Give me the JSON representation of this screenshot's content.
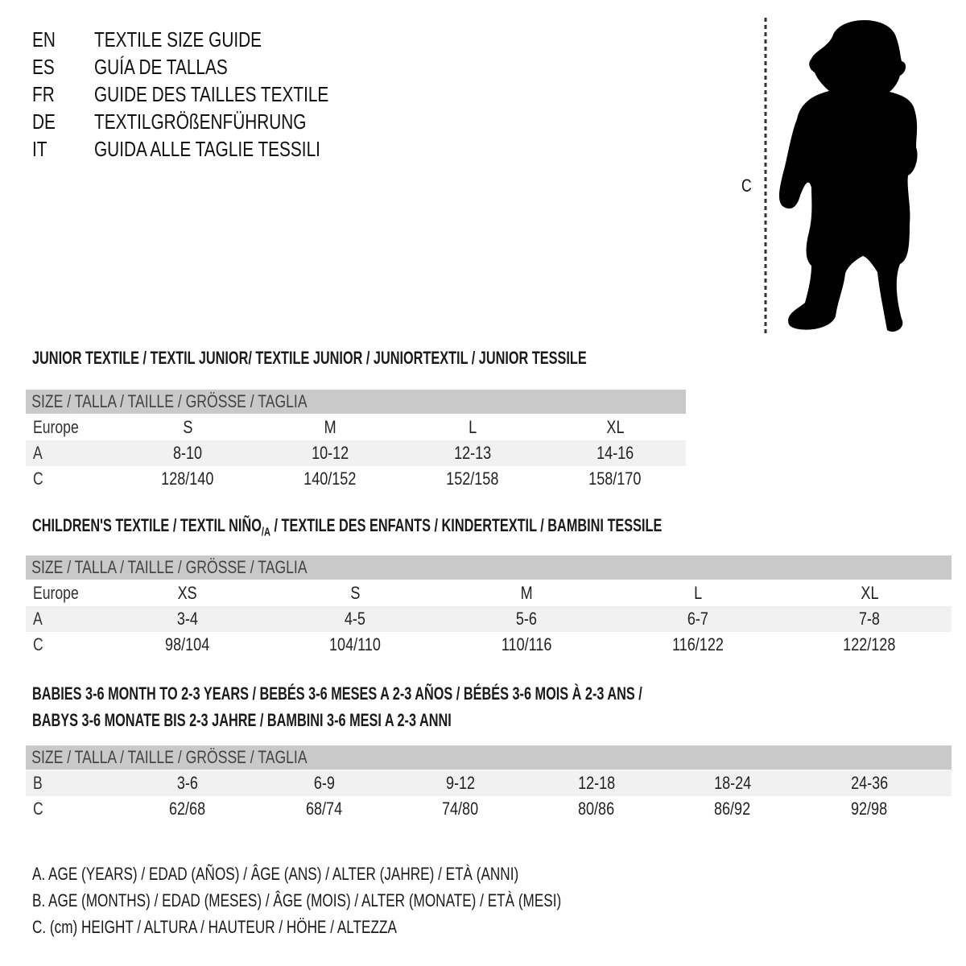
{
  "languages": [
    {
      "code": "EN",
      "title": "TEXTILE SIZE GUIDE"
    },
    {
      "code": "ES",
      "title": "GUÍA DE TALLAS"
    },
    {
      "code": "FR",
      "title": "GUIDE DES TAILLES TEXTILE"
    },
    {
      "code": "DE",
      "title": "TEXTILGRÖßENFÜHRUNG"
    },
    {
      "code": "IT",
      "title": "GUIDA ALLE TAGLIE TESSILI"
    }
  ],
  "figure": {
    "measure_label": "C",
    "icon": "child-silhouette-icon"
  },
  "size_header": "SIZE / TALLA / TAILLE / GRÖSSE / TAGLIA",
  "junior": {
    "title": "JUNIOR TEXTILE / TEXTIL JUNIOR/ TEXTILE JUNIOR / JUNIORTEXTIL / JUNIOR TESSILE",
    "rows": [
      {
        "label": "Europe",
        "values": [
          "S",
          "M",
          "L",
          "XL"
        ]
      },
      {
        "label": "A",
        "values": [
          "8-10",
          "10-12",
          "12-13",
          "14-16"
        ]
      },
      {
        "label": "C",
        "values": [
          "128/140",
          "140/152",
          "152/158",
          "158/170"
        ]
      }
    ]
  },
  "children": {
    "title_a": "CHILDREN'S TEXTILE / TEXTIL NIÑO",
    "title_sub": "/A",
    "title_b": " / TEXTILE DES ENFANTS / KINDERTEXTIL / BAMBINI TESSILE",
    "rows": [
      {
        "label": "Europe",
        "values": [
          "XS",
          "S",
          "M",
          "L",
          "XL"
        ]
      },
      {
        "label": "A",
        "values": [
          "3-4",
          "4-5",
          "5-6",
          "6-7",
          "7-8"
        ]
      },
      {
        "label": "C",
        "values": [
          "98/104",
          "104/110",
          "110/116",
          "116/122",
          "122/128"
        ]
      }
    ]
  },
  "babies": {
    "title_line1": "BABIES 3-6 MONTH TO 2-3 YEARS / BEBÉS 3-6 MESES A 2-3 AÑOS / BÉBÉS 3-6 MOIS À 2-3 ANS /",
    "title_line2": "BABYS 3-6 MONATE BIS 2-3 JAHRE / BAMBINI 3-6 MESI A 2-3 ANNI",
    "rows": [
      {
        "label": "B",
        "values": [
          "3-6",
          "6-9",
          "9-12",
          "12-18",
          "18-24",
          "24-36"
        ]
      },
      {
        "label": "C",
        "values": [
          "62/68",
          "68/74",
          "74/80",
          "80/86",
          "86/92",
          "92/98"
        ]
      }
    ]
  },
  "legend": [
    "A. AGE (YEARS) / EDAD (AÑOS) / ÂGE (ANS) / ALTER (JAHRE) / ETÀ (ANNI)",
    "B. AGE (MONTHS) / EDAD (MESES) / ÂGE (MOIS) / ALTER (MONATE) / ETÀ (MESI)",
    "C. (cm) HEIGHT / ALTURA / HAUTEUR / HÖHE / ALTEZZA"
  ],
  "colors": {
    "header_bar": "#c9c9c9",
    "shaded_row": "#f1f1f1",
    "text": "#111111"
  }
}
